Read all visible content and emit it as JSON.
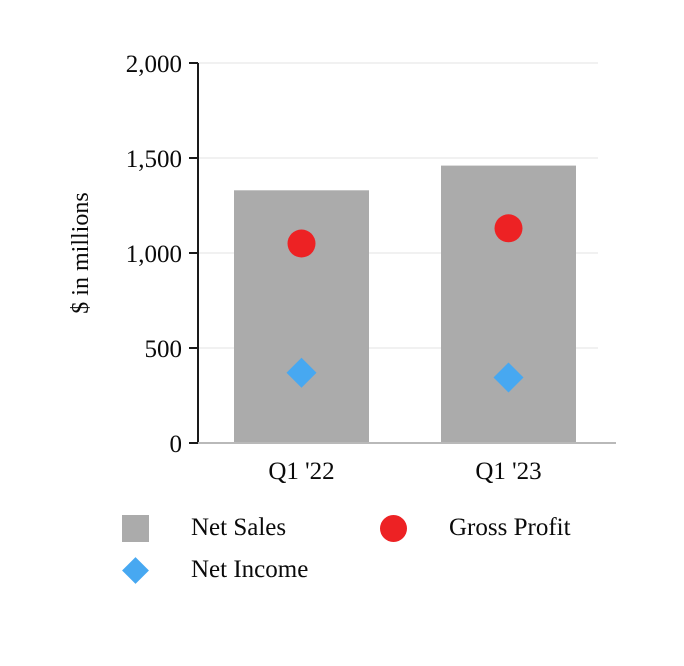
{
  "chart_data": {
    "type": "bar",
    "title": "",
    "categories": [
      "Q1 '22",
      "Q1 '23"
    ],
    "xlabel": "",
    "ylabel": "$ in millions",
    "ylim": [
      0,
      2000
    ],
    "yticks": [
      0,
      500,
      1000,
      1500,
      2000
    ],
    "ytick_labels": [
      "0",
      "500",
      "1,000",
      "1,500",
      "2,000"
    ],
    "grid": true,
    "legend_position": "bottom",
    "series": [
      {
        "name": "Net Sales",
        "type": "bar",
        "marker": "square",
        "color": "#ababab",
        "values": [
          1330,
          1460
        ]
      },
      {
        "name": "Gross Profit",
        "type": "point",
        "marker": "circle",
        "color": "#ed2224",
        "values": [
          1050,
          1130
        ]
      },
      {
        "name": "Net Income",
        "type": "point",
        "marker": "diamond",
        "color": "#47a8f1",
        "values": [
          370,
          345
        ]
      }
    ]
  },
  "legend": {
    "items": [
      {
        "label": "Net Sales",
        "marker": "square",
        "color": "#ababab"
      },
      {
        "label": "Gross Profit",
        "marker": "circle",
        "color": "#ed2224"
      },
      {
        "label": "Net Income",
        "marker": "diamond",
        "color": "#47a8f1"
      }
    ]
  }
}
